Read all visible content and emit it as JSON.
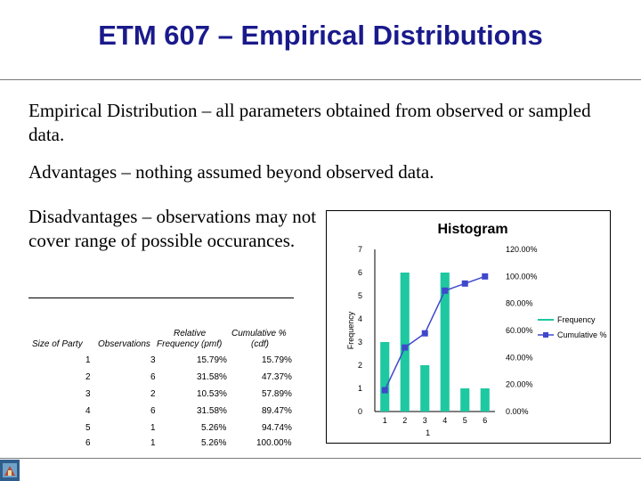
{
  "slide": {
    "title": "ETM 607 – Empirical Distributions",
    "bullets": [
      "Empirical Distribution – all parameters obtained from observed or sampled data.",
      "Advantages – nothing assumed beyond observed data.",
      "Disadvantages – observations may not cover range of possible occurances."
    ]
  },
  "table": {
    "headers": [
      "Size of Party",
      "Observations",
      "Relative",
      "Frequency (pmf)",
      "Cumulative %",
      "(cdf)"
    ],
    "rows": [
      [
        "1",
        "3",
        "15.79%",
        "15.79%"
      ],
      [
        "2",
        "6",
        "31.58%",
        "47.37%"
      ],
      [
        "3",
        "2",
        "10.53%",
        "57.89%"
      ],
      [
        "4",
        "6",
        "31.58%",
        "89.47%"
      ],
      [
        "5",
        "1",
        "5.26%",
        "94.74%"
      ],
      [
        "6",
        "1",
        "5.26%",
        "100.00%"
      ]
    ]
  },
  "chart_data": {
    "type": "bar",
    "title": "Histogram",
    "ylabel": "Frequency",
    "xlabel": "1",
    "categories": [
      "1",
      "2",
      "3",
      "4",
      "5",
      "6"
    ],
    "ylim": [
      0,
      7
    ],
    "y2lim": [
      0,
      120
    ],
    "yticks": [
      "0",
      "1",
      "2",
      "3",
      "4",
      "5",
      "6",
      "7"
    ],
    "y2ticks": [
      "0.00%",
      "20.00%",
      "40.00%",
      "60.00%",
      "80.00%",
      "100.00%",
      "120.00%"
    ],
    "legend_position": "right",
    "series": [
      {
        "name": "Frequency",
        "kind": "bar",
        "axis": "left",
        "color": "#1ec8a0",
        "values": [
          3,
          6,
          2,
          6,
          1,
          1
        ]
      },
      {
        "name": "Cumulative %",
        "kind": "line",
        "axis": "right",
        "color": "#3f48cc",
        "values": [
          15.79,
          47.37,
          57.89,
          89.47,
          94.74,
          100.0
        ]
      }
    ]
  }
}
